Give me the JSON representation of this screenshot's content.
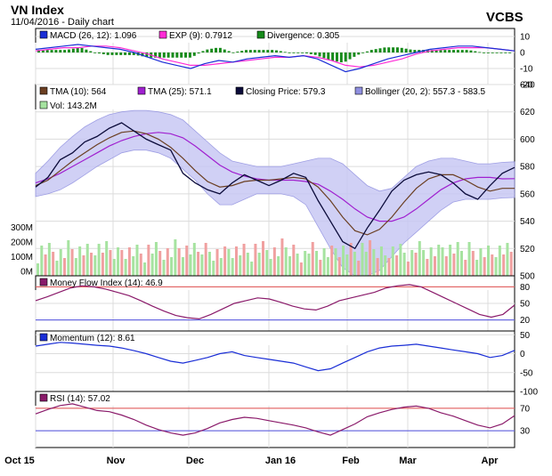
{
  "header": {
    "title": "VN Index",
    "subtitle": "11/04/2016 - Daily chart",
    "brand": "VCBS"
  },
  "colors": {
    "macd": "#1a2ed6",
    "exp": "#ff2bd6",
    "divergence": "#168a1a",
    "tma10": "#6b3f22",
    "tma25": "#a020d0",
    "close": "#0b0b3a",
    "bollinger_fill": "#c8c8f4",
    "bollinger_line": "#8f8fe0",
    "vol_up": "#a6e3a0",
    "vol_down": "#f0a0a0",
    "mfi": "#8a1a6a",
    "momentum": "#1a2ed6",
    "rsi": "#8a1a6a",
    "red_line": "#e35050",
    "blue_line": "#5050e0"
  },
  "chart_data": [
    {
      "type": "line",
      "panel": "macd",
      "legend": [
        {
          "label": "MACD (26, 12): 1.096",
          "color_key": "macd"
        },
        {
          "label": "EXP (9): 0.7912",
          "color_key": "exp"
        },
        {
          "label": "Divergence: 0.305",
          "color_key": "divergence"
        }
      ],
      "y_ticks": [
        "10",
        "0",
        "-10",
        "-20"
      ],
      "ylim": [
        -20,
        15
      ],
      "series": [
        {
          "name": "MACD (26, 12)",
          "values": [
            2,
            3,
            4,
            5,
            4,
            3,
            2,
            0,
            -3,
            -6,
            -8,
            -10,
            -7,
            -5,
            -6,
            -4,
            -3,
            -2,
            -3,
            -2,
            -4,
            -8,
            -12,
            -10,
            -7,
            -4,
            -2,
            0,
            2,
            3,
            4,
            4,
            3,
            2,
            1
          ]
        },
        {
          "name": "EXP (9)",
          "values": [
            1,
            2,
            3,
            3,
            4,
            4,
            3,
            1,
            -1,
            -4,
            -6,
            -8,
            -8,
            -7,
            -6,
            -5,
            -4,
            -3,
            -3,
            -2,
            -3,
            -5,
            -8,
            -9,
            -8,
            -6,
            -4,
            -1,
            1,
            2,
            3,
            3,
            3,
            2,
            1
          ]
        }
      ]
    },
    {
      "type": "line",
      "panel": "price",
      "legend": [
        {
          "label": "TMA (10): 564",
          "color_key": "tma10"
        },
        {
          "label": "TMA (25): 571.1",
          "color_key": "tma25"
        },
        {
          "label": "Closing Price: 579.3",
          "color_key": "close"
        },
        {
          "label": "Bollinger (20, 2): 557.3 - 583.5",
          "color_key": "bollinger_line"
        }
      ],
      "legend2": {
        "label": "Vol: 143.2M",
        "color_key": "vol_up"
      },
      "y_ticks": [
        "640",
        "620",
        "600",
        "580",
        "560",
        "540",
        "520",
        "500"
      ],
      "ylim": [
        500,
        640
      ],
      "vol_ticks": [
        "300M",
        "200M",
        "100M",
        "0M"
      ],
      "x_labels": [
        "Oct 15",
        "Nov",
        "Dec",
        "Jan 16",
        "Feb",
        "Mar",
        "Apr"
      ],
      "series": [
        {
          "name": "Closing Price",
          "values": [
            565,
            572,
            585,
            590,
            598,
            602,
            608,
            612,
            606,
            600,
            596,
            592,
            575,
            568,
            563,
            560,
            568,
            574,
            570,
            566,
            570,
            575,
            572,
            555,
            540,
            525,
            520,
            535,
            548,
            562,
            570,
            574,
            576,
            574,
            568,
            560,
            556,
            566,
            575,
            579.3
          ]
        },
        {
          "name": "TMA (10)",
          "values": [
            566,
            570,
            577,
            584,
            590,
            596,
            601,
            605,
            606,
            604,
            600,
            594,
            586,
            577,
            569,
            565,
            566,
            569,
            570,
            570,
            571,
            572,
            571,
            565,
            555,
            543,
            533,
            530,
            534,
            543,
            554,
            564,
            571,
            574,
            574,
            570,
            565,
            562,
            564,
            564
          ]
        },
        {
          "name": "TMA (25)",
          "values": [
            568,
            571,
            575,
            580,
            585,
            590,
            595,
            599,
            602,
            604,
            605,
            604,
            601,
            595,
            588,
            581,
            576,
            573,
            571,
            570,
            570,
            570,
            569,
            567,
            562,
            556,
            549,
            543,
            540,
            540,
            543,
            549,
            556,
            563,
            568,
            571,
            572,
            572,
            571,
            571.1
          ]
        },
        {
          "name": "Bollinger upper",
          "values": [
            575,
            584,
            594,
            602,
            609,
            614,
            618,
            620,
            621,
            621,
            620,
            618,
            614,
            606,
            598,
            590,
            584,
            582,
            580,
            580,
            580,
            582,
            584,
            586,
            586,
            582,
            574,
            566,
            562,
            564,
            572,
            580,
            584,
            586,
            586,
            584,
            582,
            582,
            583,
            583.5
          ]
        },
        {
          "name": "Bollinger lower",
          "values": [
            558,
            560,
            563,
            568,
            574,
            580,
            585,
            590,
            592,
            592,
            590,
            586,
            578,
            570,
            560,
            552,
            552,
            556,
            560,
            560,
            560,
            558,
            552,
            536,
            520,
            506,
            500,
            500,
            504,
            514,
            524,
            532,
            540,
            548,
            554,
            556,
            556,
            556,
            557,
            557.3
          ]
        }
      ]
    },
    {
      "type": "line",
      "panel": "mfi",
      "legend": [
        {
          "label": "Money Flow Index (14): 46.9",
          "color_key": "mfi"
        }
      ],
      "y_ticks": [
        "80",
        "50",
        "20"
      ],
      "ylim": [
        0,
        100
      ],
      "series": [
        {
          "name": "Money Flow Index (14)",
          "values": [
            55,
            62,
            70,
            78,
            82,
            80,
            76,
            70,
            64,
            55,
            45,
            36,
            28,
            24,
            22,
            30,
            40,
            50,
            55,
            60,
            58,
            52,
            45,
            40,
            38,
            45,
            55,
            60,
            65,
            70,
            78,
            82,
            84,
            80,
            70,
            60,
            50,
            40,
            30,
            25,
            30,
            46.9
          ]
        }
      ]
    },
    {
      "type": "line",
      "panel": "momentum",
      "legend": [
        {
          "label": "Momentum (12): 8.61",
          "color_key": "momentum"
        }
      ],
      "y_ticks": [
        "50",
        "0",
        "-50",
        "-100"
      ],
      "ylim": [
        -100,
        60
      ],
      "series": [
        {
          "name": "Momentum (12)",
          "values": [
            20,
            25,
            30,
            28,
            25,
            22,
            20,
            15,
            8,
            0,
            -10,
            -20,
            -25,
            -18,
            -10,
            0,
            5,
            -5,
            -10,
            -15,
            -20,
            -25,
            -35,
            -45,
            -40,
            -25,
            -10,
            5,
            15,
            20,
            22,
            25,
            20,
            15,
            10,
            5,
            0,
            -10,
            -5,
            8.61
          ]
        }
      ]
    },
    {
      "type": "line",
      "panel": "rsi",
      "legend": [
        {
          "label": "RSI (14): 57.02",
          "color_key": "rsi"
        }
      ],
      "y_ticks": [
        "70",
        "30"
      ],
      "ylim": [
        0,
        100
      ],
      "series": [
        {
          "name": "RSI (14)",
          "values": [
            60,
            68,
            75,
            78,
            72,
            66,
            64,
            58,
            50,
            40,
            32,
            26,
            22,
            26,
            34,
            44,
            50,
            54,
            52,
            48,
            44,
            40,
            35,
            28,
            22,
            32,
            42,
            55,
            62,
            68,
            72,
            74,
            70,
            62,
            56,
            48,
            40,
            35,
            42,
            57.02
          ]
        }
      ]
    }
  ]
}
